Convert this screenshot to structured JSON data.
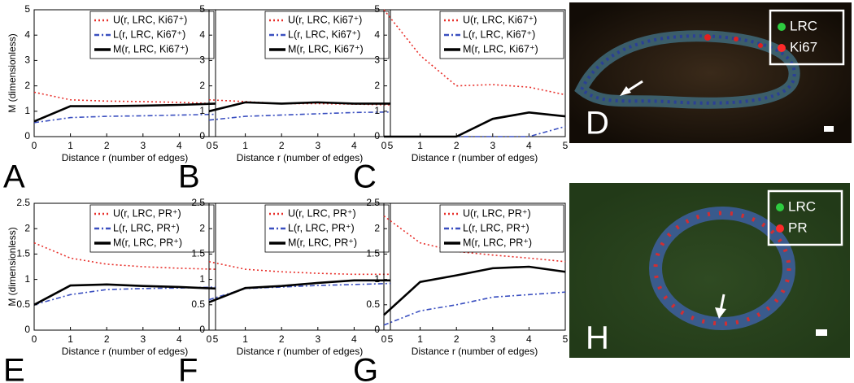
{
  "chart_data": [
    {
      "type": "line",
      "panel_label": "A",
      "ylabel": "M (dimensionless)",
      "xlabel": "Distance r (number of edges)",
      "x": [
        0,
        1,
        2,
        3,
        4,
        5
      ],
      "xlim": [
        0,
        5
      ],
      "ylim": [
        0,
        5
      ],
      "xticks": [
        0,
        1,
        2,
        3,
        4,
        5
      ],
      "yticks": [
        0,
        1,
        2,
        3,
        4,
        5
      ],
      "series": [
        {
          "name": "U(r, LRC, Ki67⁺)",
          "color": "#e8302b",
          "dash": "dotted",
          "values": [
            1.75,
            1.45,
            1.4,
            1.38,
            1.35,
            1.3
          ]
        },
        {
          "name": "L(r, LRC, Ki67⁺)",
          "color": "#3a4fc0",
          "dash": "dashdot",
          "values": [
            0.55,
            0.75,
            0.8,
            0.82,
            0.85,
            0.88
          ]
        },
        {
          "name": "M(r, LRC, Ki67⁺)",
          "color": "#000000",
          "dash": "solid",
          "values": [
            0.6,
            1.2,
            1.2,
            1.22,
            1.25,
            1.3
          ]
        }
      ]
    },
    {
      "type": "line",
      "panel_label": "B",
      "xlabel": "Distance r (number of edges)",
      "x": [
        0,
        1,
        2,
        3,
        4,
        5
      ],
      "xlim": [
        0,
        5
      ],
      "ylim": [
        0,
        5
      ],
      "xticks": [
        0,
        1,
        2,
        3,
        4,
        5
      ],
      "yticks": [
        0,
        1,
        2,
        3,
        4,
        5
      ],
      "series": [
        {
          "name": "U(r, LRC, Ki67⁺)",
          "color": "#e8302b",
          "dash": "dotted",
          "values": [
            1.45,
            1.38,
            1.3,
            1.3,
            1.28,
            1.25
          ]
        },
        {
          "name": "L(r, LRC, Ki67⁺)",
          "color": "#3a4fc0",
          "dash": "dashdot",
          "values": [
            0.65,
            0.8,
            0.85,
            0.9,
            0.95,
            0.97
          ]
        },
        {
          "name": "M(r, LRC, Ki67⁺)",
          "color": "#000000",
          "dash": "solid",
          "values": [
            1.0,
            1.35,
            1.3,
            1.35,
            1.3,
            1.3
          ]
        }
      ]
    },
    {
      "type": "line",
      "panel_label": "C",
      "xlabel": "Distance r (number of edges)",
      "x": [
        0,
        1,
        2,
        3,
        4,
        5
      ],
      "xlim": [
        0,
        5
      ],
      "ylim": [
        0,
        5
      ],
      "xticks": [
        0,
        1,
        2,
        3,
        4,
        5
      ],
      "yticks": [
        0,
        1,
        2,
        3,
        4,
        5
      ],
      "series": [
        {
          "name": "U(r, LRC, Ki67⁺)",
          "color": "#e8302b",
          "dash": "dotted",
          "values": [
            5.0,
            3.2,
            2.0,
            2.05,
            1.95,
            1.65
          ]
        },
        {
          "name": "L(r, LRC, Ki67⁺)",
          "color": "#3a4fc0",
          "dash": "dashdot",
          "values": [
            0,
            0,
            0,
            0,
            0,
            0.4
          ]
        },
        {
          "name": "M(r, LRC, Ki67⁺)",
          "color": "#000000",
          "dash": "solid",
          "values": [
            0,
            0,
            0,
            0.7,
            0.95,
            0.8
          ]
        }
      ]
    },
    {
      "type": "line",
      "panel_label": "E",
      "ylabel": "M (dimensionless)",
      "xlabel": "Distance r (number of edges)",
      "x": [
        0,
        1,
        2,
        3,
        4,
        5
      ],
      "xlim": [
        0,
        5
      ],
      "ylim": [
        0,
        2.5
      ],
      "xticks": [
        0,
        1,
        2,
        3,
        4,
        5
      ],
      "yticks": [
        0,
        0.5,
        1,
        1.5,
        2,
        2.5
      ],
      "series": [
        {
          "name": "U(r, LRC, PR⁺)",
          "color": "#e8302b",
          "dash": "dotted",
          "values": [
            1.72,
            1.42,
            1.3,
            1.25,
            1.22,
            1.2
          ]
        },
        {
          "name": "L(r, LRC, PR⁺)",
          "color": "#3a4fc0",
          "dash": "dashdot",
          "values": [
            0.5,
            0.7,
            0.8,
            0.82,
            0.83,
            0.85
          ]
        },
        {
          "name": "M(r, LRC, PR⁺)",
          "color": "#000000",
          "dash": "solid",
          "values": [
            0.5,
            0.88,
            0.9,
            0.87,
            0.85,
            0.82
          ]
        }
      ]
    },
    {
      "type": "line",
      "panel_label": "F",
      "xlabel": "Distance r (number of edges)",
      "x": [
        0,
        1,
        2,
        3,
        4,
        5
      ],
      "xlim": [
        0,
        5
      ],
      "ylim": [
        0,
        2.5
      ],
      "xticks": [
        0,
        1,
        2,
        3,
        4,
        5
      ],
      "yticks": [
        0,
        0.5,
        1,
        1.5,
        2,
        2.5
      ],
      "series": [
        {
          "name": "U(r, LRC, PR⁺)",
          "color": "#e8302b",
          "dash": "dotted",
          "values": [
            1.35,
            1.2,
            1.15,
            1.12,
            1.1,
            1.1
          ]
        },
        {
          "name": "L(r, LRC, PR⁺)",
          "color": "#3a4fc0",
          "dash": "dashdot",
          "values": [
            0.6,
            0.82,
            0.85,
            0.88,
            0.9,
            0.92
          ]
        },
        {
          "name": "M(r, LRC, PR⁺)",
          "color": "#000000",
          "dash": "solid",
          "values": [
            0.55,
            0.83,
            0.87,
            0.93,
            0.98,
            0.98
          ]
        }
      ]
    },
    {
      "type": "line",
      "panel_label": "G",
      "xlabel": "Distance r (number of edges)",
      "x": [
        0,
        1,
        2,
        3,
        4,
        5
      ],
      "xlim": [
        0,
        5
      ],
      "ylim": [
        0,
        2.5
      ],
      "xticks": [
        0,
        1,
        2,
        3,
        4,
        5
      ],
      "yticks": [
        0,
        0.5,
        1,
        1.5,
        2,
        2.5
      ],
      "series": [
        {
          "name": "U(r, LRC, PR⁺)",
          "color": "#e8302b",
          "dash": "dotted",
          "values": [
            2.25,
            1.72,
            1.55,
            1.48,
            1.42,
            1.35
          ]
        },
        {
          "name": "L(r, LRC, PR⁺)",
          "color": "#3a4fc0",
          "dash": "dashdot",
          "values": [
            0.1,
            0.38,
            0.5,
            0.65,
            0.7,
            0.75
          ]
        },
        {
          "name": "M(r, LRC, PR⁺)",
          "color": "#000000",
          "dash": "solid",
          "values": [
            0.3,
            0.95,
            1.08,
            1.22,
            1.25,
            1.15
          ]
        }
      ]
    }
  ],
  "images": [
    {
      "panel_label": "D",
      "legend": [
        "LRC",
        "Ki67"
      ]
    },
    {
      "panel_label": "H",
      "legend": [
        "LRC",
        "PR"
      ]
    }
  ]
}
